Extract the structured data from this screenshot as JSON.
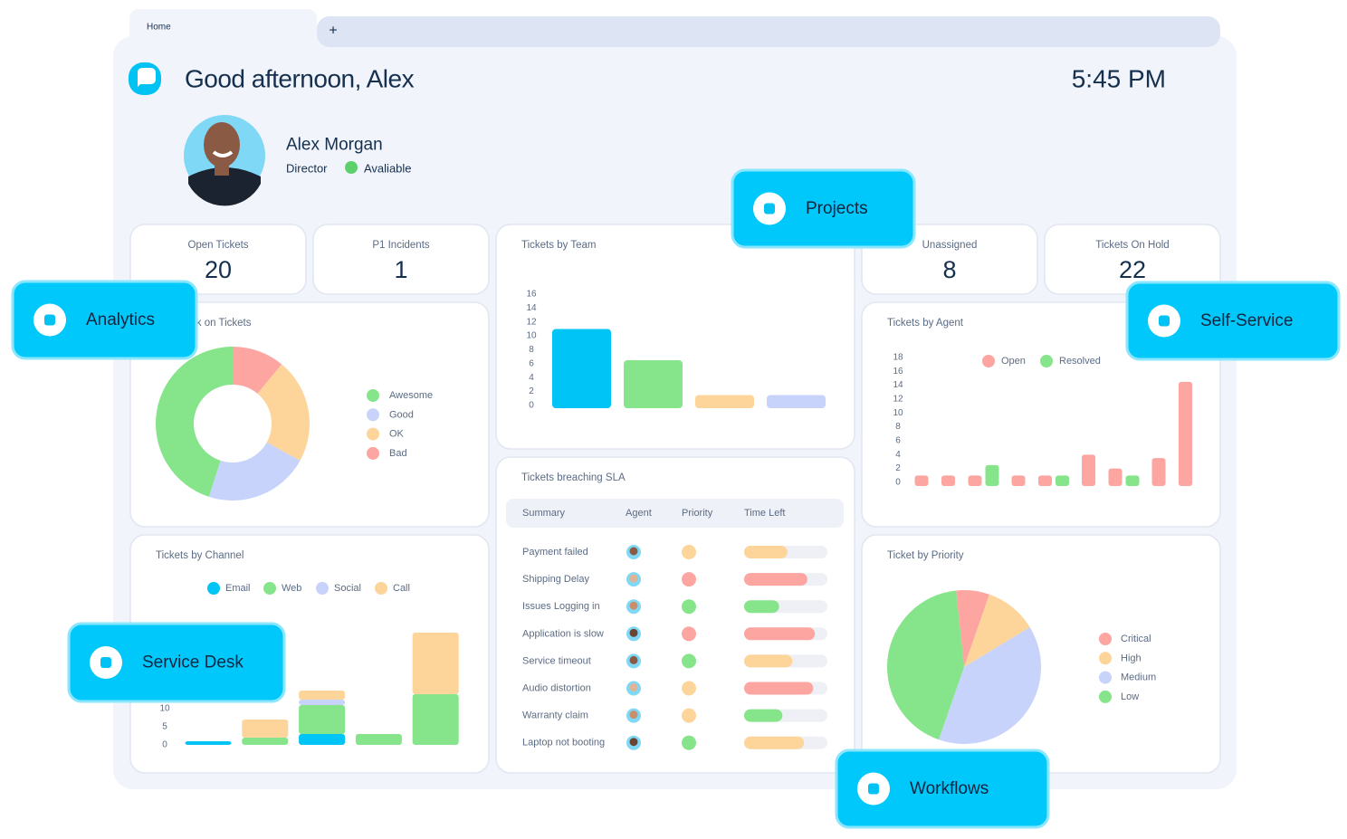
{
  "tabs": {
    "home": "Home",
    "new": "+"
  },
  "header": {
    "greeting": "Good afternoon, Alex",
    "time": "5:45 PM"
  },
  "profile": {
    "name": "Alex Morgan",
    "role": "Director",
    "status": "Avaliable",
    "status_color": "#5cd16b"
  },
  "stats": [
    {
      "label": "Open Tickets",
      "value": 20
    },
    {
      "label": "P1 Incidents",
      "value": 1
    },
    {
      "label": "Unassigned",
      "value": 8
    },
    {
      "label": "Tickets On Hold",
      "value": 22
    }
  ],
  "features": [
    "Projects",
    "Analytics",
    "Self-Service",
    "Service Desk",
    "Workflows"
  ],
  "chart_data": [
    {
      "type": "donut",
      "title": "Feedback on Tickets",
      "categories": [
        "Awesome",
        "Good",
        "OK",
        "Bad"
      ],
      "values": [
        45,
        22,
        22,
        11
      ],
      "colors": [
        "#86e58a",
        "#c7d3fa",
        "#fdd49a",
        "#fca5a1"
      ]
    },
    {
      "type": "bar",
      "title": "Tickets by Team",
      "values": [
        11,
        6.5,
        1.5,
        1.5
      ],
      "colors": [
        "#00c4f5",
        "#86e58a",
        "#fdd49a",
        "#c7d3fa"
      ],
      "ylim": [
        0,
        16
      ],
      "yticks": [
        0,
        2,
        4,
        6,
        8,
        10,
        12,
        14,
        16
      ]
    },
    {
      "type": "grouped_bar",
      "title": "Tickets by Agent",
      "series": [
        {
          "name": "Open",
          "color": "#fca5a1",
          "values": [
            1,
            1,
            1,
            1,
            1,
            4,
            2,
            3.5,
            14.5
          ]
        },
        {
          "name": "Resolved",
          "color": "#86e58a",
          "values": [
            null,
            null,
            2.5,
            null,
            1,
            null,
            1,
            null,
            null
          ]
        }
      ],
      "ylim": [
        0,
        18
      ],
      "yticks": [
        0,
        2,
        4,
        6,
        8,
        10,
        12,
        14,
        16,
        18
      ]
    },
    {
      "type": "stacked_bar",
      "title": "Tickets by Channel",
      "series": [
        {
          "name": "Email",
          "color": "#00c4f5",
          "values": [
            1,
            0,
            3,
            0,
            0
          ]
        },
        {
          "name": "Web",
          "color": "#86e58a",
          "values": [
            0,
            2,
            8,
            3,
            14
          ]
        },
        {
          "name": "Social",
          "color": "#c7d3fa",
          "values": [
            0,
            0,
            1.5,
            0,
            0
          ]
        },
        {
          "name": "Call",
          "color": "#fdd49a",
          "values": [
            0,
            5,
            2.5,
            0,
            17
          ]
        }
      ],
      "ylim": [
        0,
        32
      ],
      "yticks": [
        0,
        5,
        10
      ]
    },
    {
      "type": "pie",
      "title": "Ticket by Priority",
      "categories": [
        "Critical",
        "High",
        "Medium",
        "Low"
      ],
      "values": [
        7,
        11,
        39,
        43
      ],
      "colors": [
        "#fca5a1",
        "#fdd49a",
        "#c7d3fa",
        "#86e58a"
      ]
    }
  ],
  "sla": {
    "title": "Tickets breaching SLA",
    "columns": [
      "Summary",
      "Agent",
      "Priority",
      "Time Left"
    ],
    "xlim": [
      0,
      100
    ],
    "rows": [
      {
        "summary": "Payment failed",
        "priority_color": "#fdd49a",
        "time_left": 52,
        "time_left_color": "#fdd49a"
      },
      {
        "summary": "Shipping Delay",
        "priority_color": "#fca5a1",
        "time_left": 76,
        "time_left_color": "#fca5a1"
      },
      {
        "summary": "Issues Logging in",
        "priority_color": "#86e58a",
        "time_left": 42,
        "time_left_color": "#86e58a"
      },
      {
        "summary": "Application is slow",
        "priority_color": "#fca5a1",
        "time_left": 85,
        "time_left_color": "#fca5a1"
      },
      {
        "summary": "Service timeout",
        "priority_color": "#86e58a",
        "time_left": 58,
        "time_left_color": "#fdd49a"
      },
      {
        "summary": "Audio distortion",
        "priority_color": "#fdd49a",
        "time_left": 83,
        "time_left_color": "#fca5a1"
      },
      {
        "summary": "Warranty claim",
        "priority_color": "#fdd49a",
        "time_left": 46,
        "time_left_color": "#86e58a"
      },
      {
        "summary": "Laptop not booting",
        "priority_color": "#86e58a",
        "time_left": 72,
        "time_left_color": "#fdd49a"
      }
    ]
  }
}
